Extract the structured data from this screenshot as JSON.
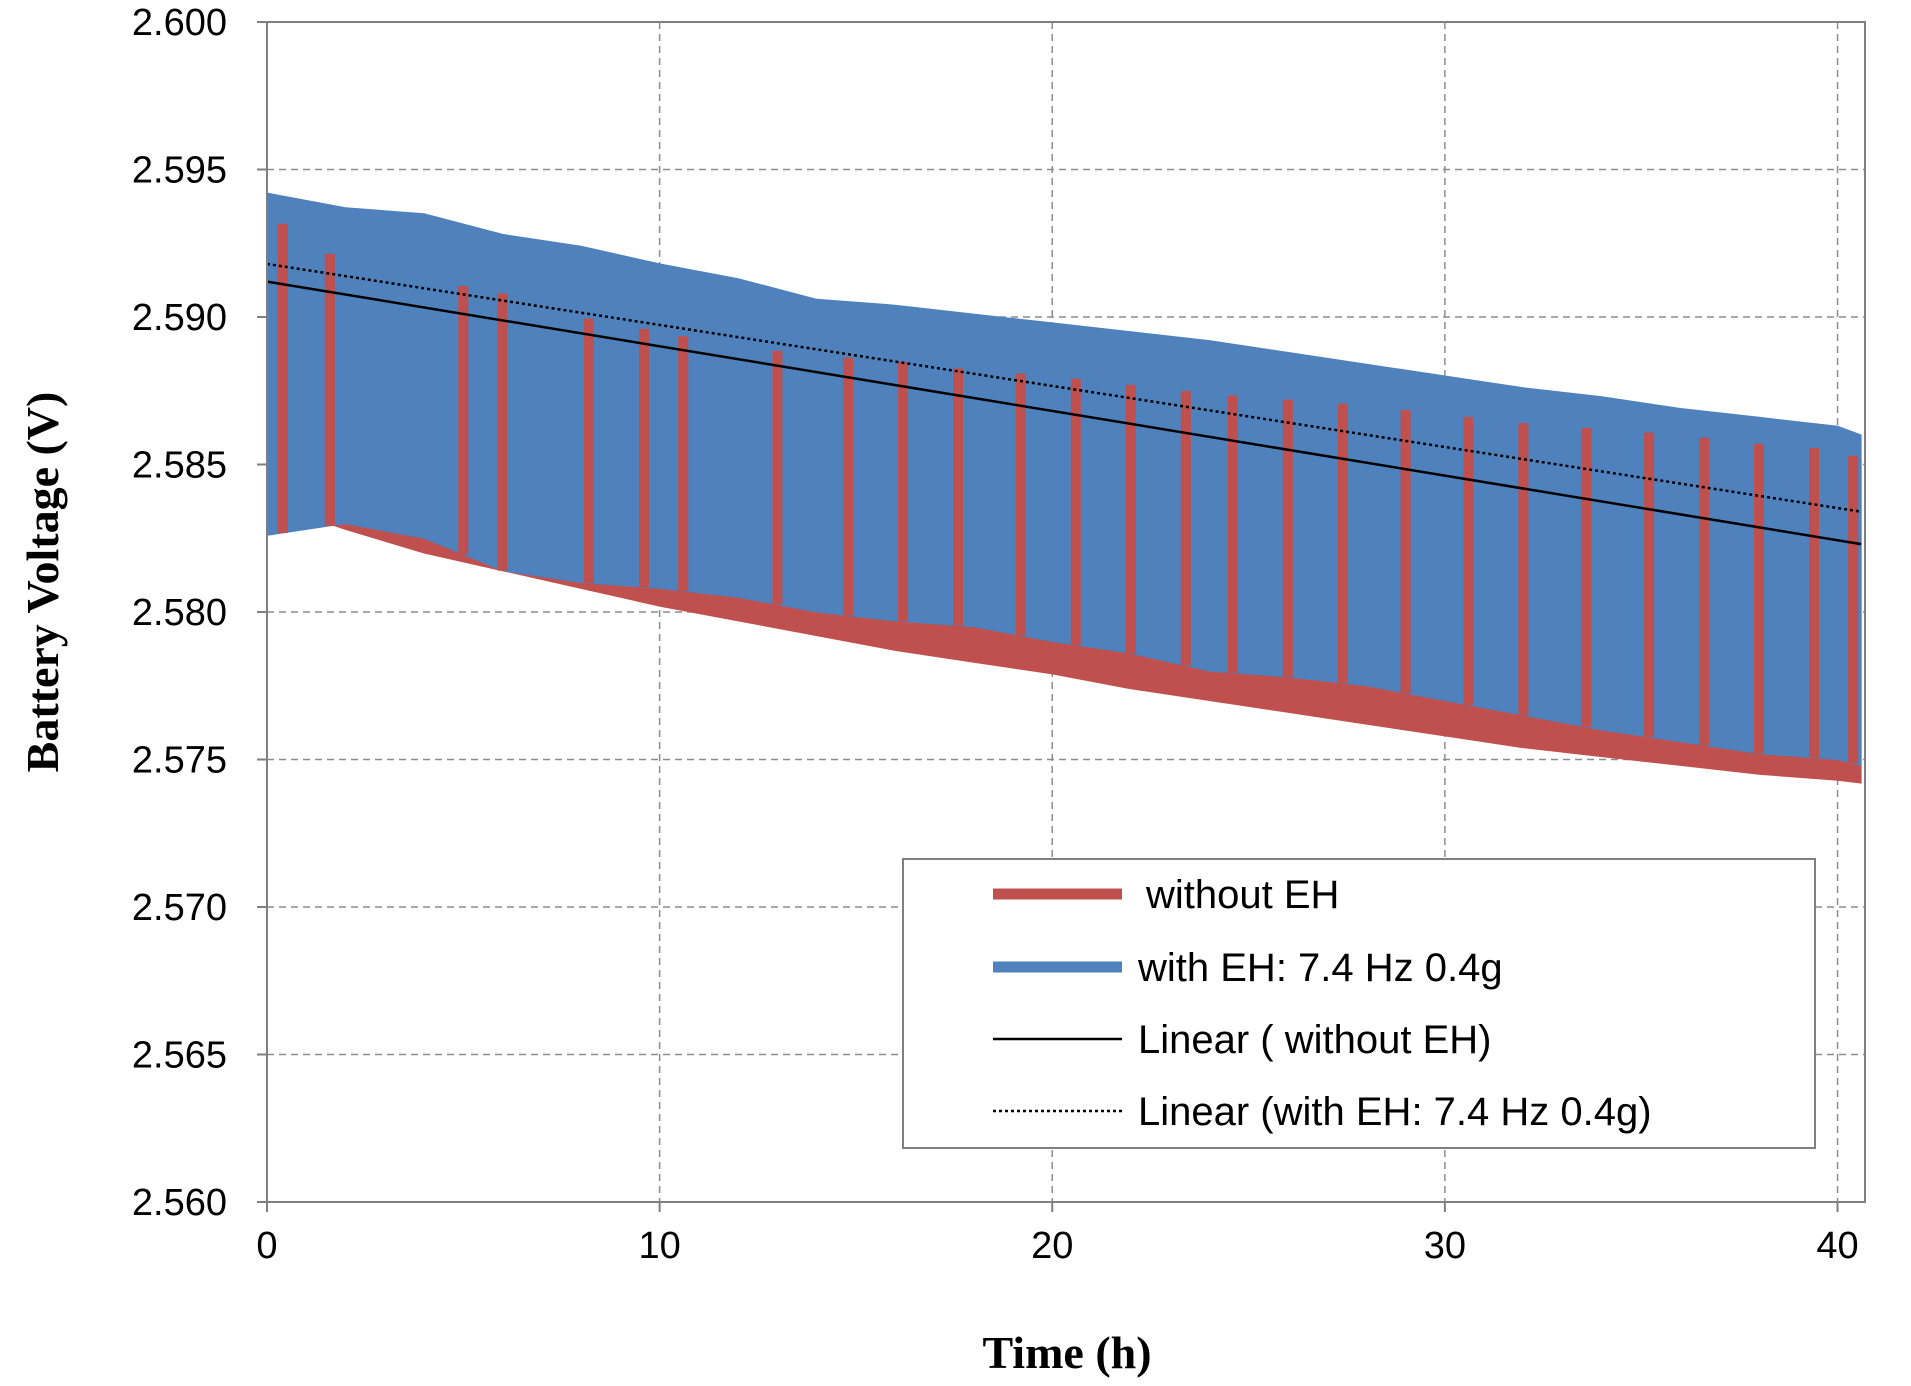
{
  "chart_data": {
    "type": "line",
    "title": "",
    "xlabel": "Time  (h)",
    "ylabel": "Battery Voltage  (V)",
    "xlim": [
      0,
      40.7
    ],
    "ylim": [
      2.56,
      2.6
    ],
    "xticks": [
      0,
      10,
      20,
      30,
      40
    ],
    "xtick_labels": [
      "0",
      "10",
      "20",
      "30",
      "40"
    ],
    "yticks": [
      2.56,
      2.565,
      2.57,
      2.575,
      2.58,
      2.585,
      2.59,
      2.595,
      2.6
    ],
    "ytick_labels": [
      "2.560",
      "2.565",
      "2.570",
      "2.575",
      "2.580",
      "2.585",
      "2.590",
      "2.595",
      "2.600"
    ],
    "grid": true,
    "legend_position": "bottom-right",
    "series": [
      {
        "name": "without EH",
        "color": "#C0504D",
        "style": "band",
        "x": [
          0,
          2,
          4,
          6,
          8,
          10,
          12,
          14,
          16,
          18,
          20,
          22,
          24,
          26,
          28,
          30,
          32,
          34,
          36,
          38,
          40,
          40.6
        ],
        "upper": [
          2.5935,
          2.5918,
          2.5913,
          2.5908,
          2.59,
          2.5895,
          2.589,
          2.5887,
          2.5885,
          2.5882,
          2.588,
          2.5877,
          2.5874,
          2.5872,
          2.587,
          2.5867,
          2.5864,
          2.5862,
          2.586,
          2.5857,
          2.5855,
          2.5852
        ],
        "lower": [
          2.5837,
          2.5828,
          2.582,
          2.5814,
          2.5808,
          2.5802,
          2.5797,
          2.5792,
          2.5787,
          2.5783,
          2.5779,
          2.5774,
          2.577,
          2.5766,
          2.5762,
          2.5758,
          2.5754,
          2.5751,
          2.5748,
          2.5745,
          2.5743,
          2.5742
        ]
      },
      {
        "name": "with EH: 7.4 Hz 0.4g",
        "color": "#4F81BD",
        "style": "band",
        "x": [
          0,
          2,
          4,
          6,
          8,
          10,
          12,
          14,
          16,
          18,
          20,
          22,
          24,
          26,
          28,
          30,
          32,
          34,
          36,
          38,
          40,
          40.6
        ],
        "upper": [
          2.5942,
          2.5937,
          2.5935,
          2.5928,
          2.5924,
          2.5918,
          2.5913,
          2.5906,
          2.5904,
          2.5901,
          2.5898,
          2.5895,
          2.5892,
          2.5888,
          2.5884,
          2.588,
          2.5876,
          2.5873,
          2.5869,
          2.5866,
          2.5863,
          2.586
        ],
        "lower": [
          2.5826,
          2.583,
          2.5825,
          2.5814,
          2.581,
          2.5808,
          2.5805,
          2.58,
          2.5797,
          2.5795,
          2.579,
          2.5786,
          2.578,
          2.5778,
          2.5775,
          2.577,
          2.5765,
          2.576,
          2.5756,
          2.5752,
          2.575,
          2.5748
        ],
        "dips": [
          0.4,
          1.6,
          5.0,
          6.0,
          8.2,
          9.6,
          10.6,
          13.0,
          14.8,
          16.2,
          17.6,
          19.2,
          20.6,
          22.0,
          23.4,
          24.6,
          26.0,
          27.4,
          29.0,
          30.6,
          32.0,
          33.6,
          35.2,
          36.6,
          38.0,
          39.4,
          40.4
        ]
      },
      {
        "name": "Linear ( without EH)",
        "color": "#000000",
        "style": "solid",
        "x": [
          0,
          40.6
        ],
        "y": [
          2.5912,
          2.5823
        ]
      },
      {
        "name": "Linear (with EH: 7.4 Hz 0.4g)",
        "color": "#000000",
        "style": "dotted",
        "x": [
          0,
          40.6
        ],
        "y": [
          2.5918,
          2.5834
        ]
      }
    ]
  }
}
